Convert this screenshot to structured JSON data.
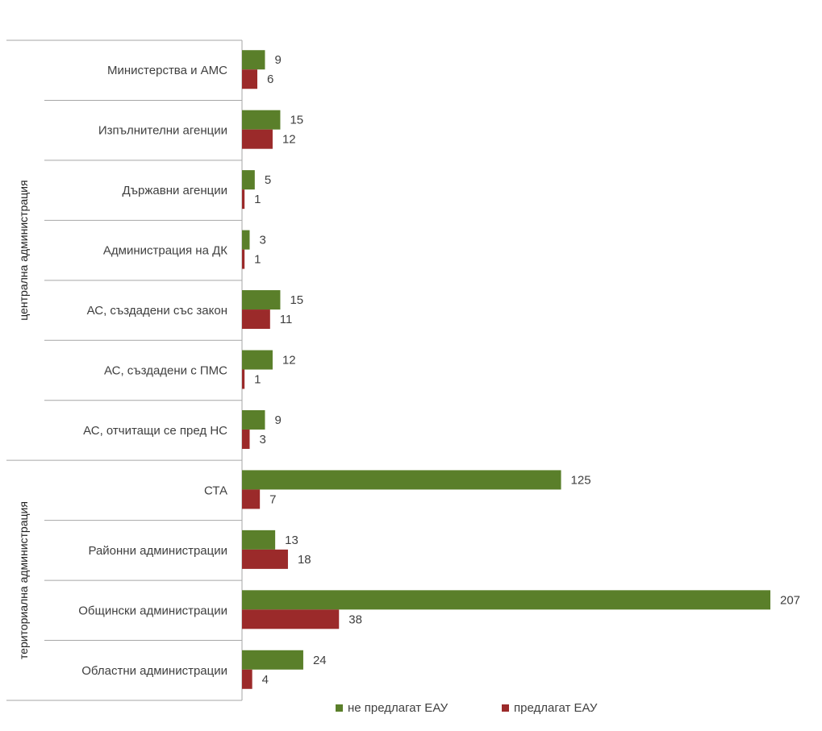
{
  "chart_data": {
    "type": "bar",
    "orientation": "horizontal",
    "categories": [
      "Министерства и АМС",
      "Изпълнителни агенции",
      "Държавни агенции",
      "Администрация на ДК",
      "АС, създадени със закон",
      "АС, създадени с ПМС",
      "АС, отчитащи се пред НС",
      "СТА",
      "Районни администрации",
      "Общински администрации",
      "Областни администрации"
    ],
    "groups": [
      {
        "label": "централна администрация",
        "start": 0,
        "end": 6
      },
      {
        "label": "териториална администрация",
        "start": 7,
        "end": 10
      }
    ],
    "series": [
      {
        "name": "не предлагат ЕАУ",
        "color": "#5a7f2a",
        "values": [
          9,
          15,
          5,
          3,
          15,
          12,
          9,
          125,
          13,
          207,
          24
        ]
      },
      {
        "name": "предлагат ЕАУ",
        "color": "#9b2a2a",
        "values": [
          6,
          12,
          1,
          1,
          11,
          1,
          3,
          7,
          18,
          38,
          4
        ]
      }
    ],
    "xlim": [
      0,
      207
    ],
    "grid": false,
    "legend": "bottom"
  }
}
